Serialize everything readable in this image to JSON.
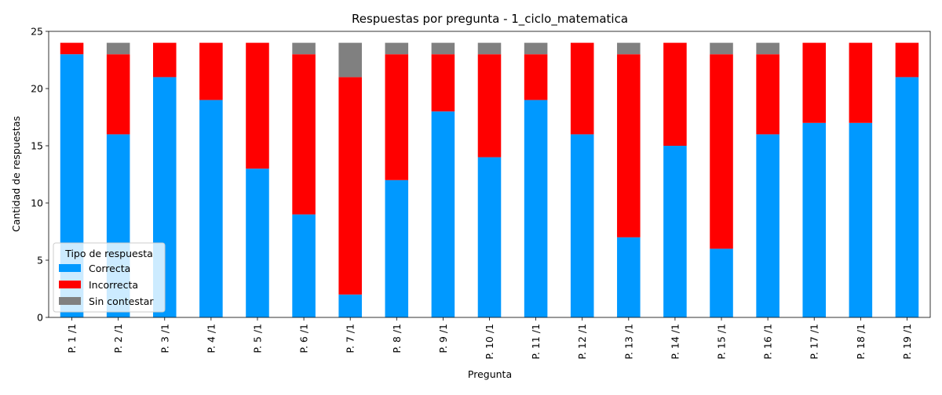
{
  "chart_data": {
    "type": "bar",
    "stacked": true,
    "title": "Respuestas por pregunta - 1_ciclo_matematica",
    "xlabel": "Pregunta",
    "ylabel": "Cantidad de respuestas",
    "ylim": [
      0,
      25
    ],
    "yticks": [
      0,
      5,
      10,
      15,
      20,
      25
    ],
    "grid": false,
    "legend": {
      "title": "Tipo de respuesta",
      "position": "lower-left"
    },
    "categories": [
      "P. 1 /1",
      "P. 2 /1",
      "P. 3 /1",
      "P. 4 /1",
      "P. 5 /1",
      "P. 6 /1",
      "P. 7 /1",
      "P. 8 /1",
      "P. 9 /1",
      "P. 10 /1",
      "P. 11 /1",
      "P. 12 /1",
      "P. 13 /1",
      "P. 14 /1",
      "P. 15 /1",
      "P. 16 /1",
      "P. 17 /1",
      "P. 18 /1",
      "P. 19 /1"
    ],
    "series": [
      {
        "name": "Correcta",
        "color": "#0099ff",
        "values": [
          23,
          16,
          21,
          19,
          13,
          9,
          2,
          12,
          18,
          14,
          19,
          16,
          7,
          15,
          6,
          16,
          17,
          17,
          21
        ]
      },
      {
        "name": "Incorrecta",
        "color": "#ff0000",
        "values": [
          1,
          7,
          3,
          5,
          11,
          14,
          19,
          11,
          5,
          9,
          4,
          8,
          16,
          9,
          17,
          7,
          7,
          7,
          3
        ]
      },
      {
        "name": "Sin contestar",
        "color": "#808080",
        "values": [
          0,
          1,
          0,
          0,
          0,
          1,
          3,
          1,
          1,
          1,
          1,
          0,
          1,
          0,
          1,
          1,
          0,
          0,
          0
        ]
      }
    ]
  }
}
